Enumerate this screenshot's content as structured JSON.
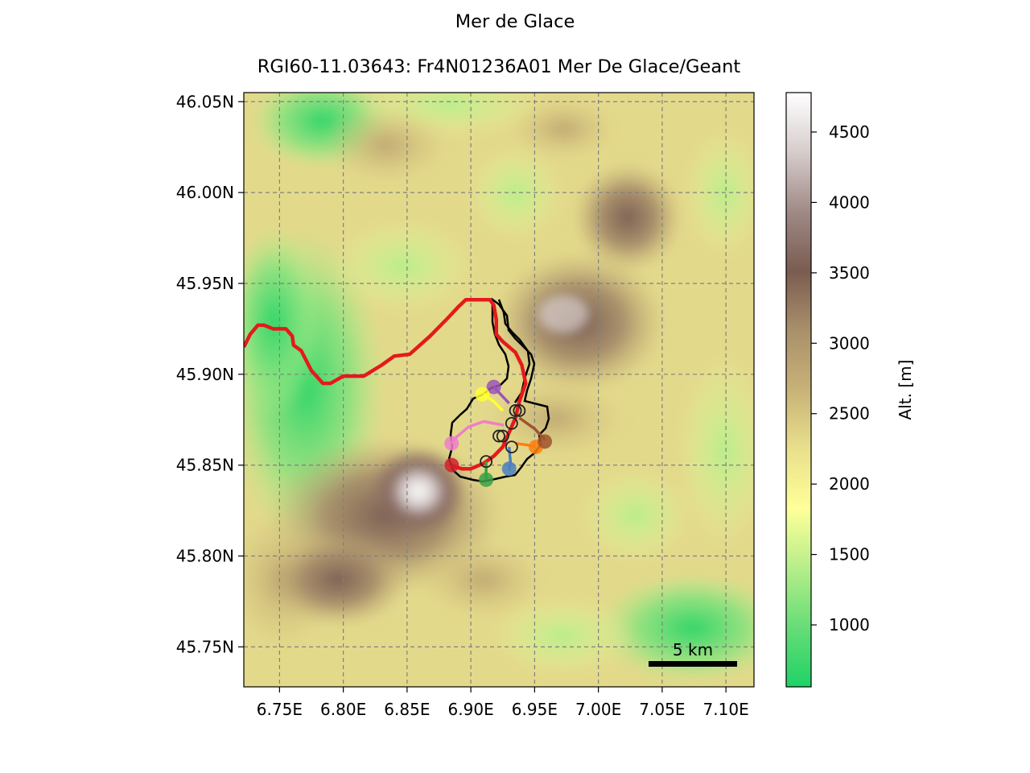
{
  "figure": {
    "suptitle": "Mer de Glace",
    "title": "RGI60-11.03643: Fr4N01236A01 Mer De Glace/Geant"
  },
  "map": {
    "lon_range": [
      6.722,
      7.122
    ],
    "lat_range": [
      45.728,
      46.055
    ],
    "xtick_values": [
      6.75,
      6.8,
      6.85,
      6.9,
      6.95,
      7.0,
      7.05,
      7.1
    ],
    "xtick_labels": [
      "6.75E",
      "6.80E",
      "6.85E",
      "6.90E",
      "6.95E",
      "7.00E",
      "7.05E",
      "7.10E"
    ],
    "ytick_values": [
      46.05,
      46.0,
      45.95,
      45.9,
      45.85,
      45.8,
      45.75
    ],
    "ytick_labels": [
      "46.05N",
      "46.00N",
      "45.95N",
      "45.90N",
      "45.85N",
      "45.80N",
      "45.75N"
    ],
    "grid": true,
    "scalebar_label": "5 km",
    "main_flowline_color": "#e41a1c",
    "tributary_colors": [
      "#4a7fc1",
      "#ff7f0e",
      "#3aa045",
      "#d4202a",
      "#9b55b8",
      "#a0522d",
      "#f07ec8",
      "#ffff33"
    ]
  },
  "colorbar": {
    "label": "Alt. [m]",
    "range": [
      560,
      4780
    ],
    "tick_values": [
      1000,
      1500,
      2000,
      2500,
      3000,
      3500,
      4000,
      4500
    ],
    "tick_labels": [
      "1000",
      "1500",
      "2000",
      "2500",
      "3000",
      "3500",
      "4000",
      "4500"
    ],
    "colors": [
      "#1fd266",
      "#66dd77",
      "#b6ee8a",
      "#ffff99",
      "#e9e08c",
      "#c8b277",
      "#a9906b",
      "#7a5c50",
      "#a08a86",
      "#d6cdcc",
      "#ffffff"
    ]
  }
}
